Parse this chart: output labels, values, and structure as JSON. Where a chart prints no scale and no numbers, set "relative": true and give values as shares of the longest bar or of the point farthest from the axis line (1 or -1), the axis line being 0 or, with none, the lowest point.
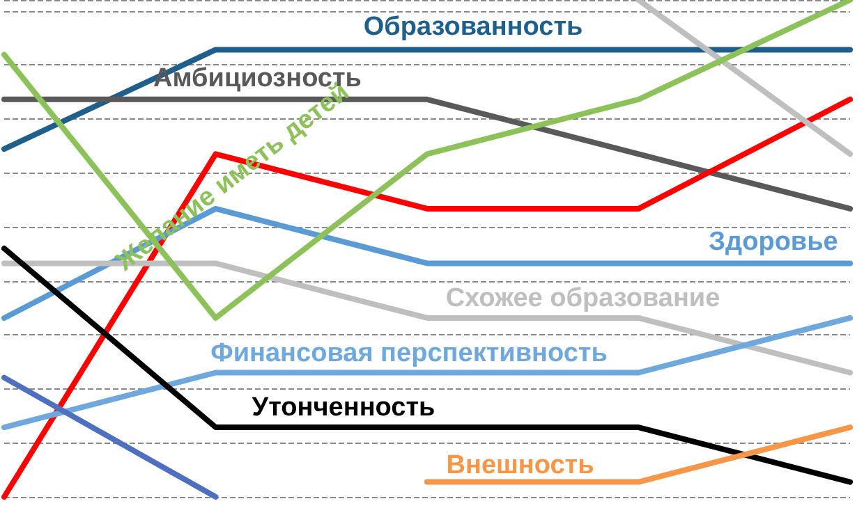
{
  "chart_data": {
    "type": "line",
    "relative": true,
    "categories": [
      null,
      null,
      null,
      null,
      null
    ],
    "grid": "y",
    "legend": false,
    "marker": "none",
    "line_style": "solid",
    "series": [
      {
        "name": "Образованность",
        "color": "#1f5f8b",
        "values": [
          0.7,
          0.9,
          0.9,
          0.9,
          0.9
        ]
      },
      {
        "name": "Амбициозность",
        "color": "#595959",
        "values": [
          0.8,
          0.8,
          0.8,
          0.69,
          0.58
        ]
      },
      {
        "color": "#ff0000",
        "values": [
          0,
          0.69,
          0.58,
          0.58,
          0.8
        ]
      },
      {
        "name": "Здоровье",
        "color": "#5b9bd5",
        "values": [
          0.36,
          0.58,
          0.47,
          0.47,
          0.47
        ]
      },
      {
        "name": "Схожее образование",
        "color": "#bfbfbf",
        "values": [
          0.47,
          0.47,
          0.36,
          0.36,
          0.25
        ]
      },
      {
        "color": "#bfbfbf",
        "values": [
          null,
          null,
          null,
          1.0,
          0.69
        ]
      },
      {
        "name": "Финансовая перспективность",
        "color": "#6fa8dc",
        "values": [
          0.14,
          0.25,
          0.25,
          0.25,
          0.36
        ]
      },
      {
        "name": "Утонченность",
        "color": "#000000",
        "values": [
          0.5,
          0.14,
          0.14,
          0.14,
          0.03
        ]
      },
      {
        "name": "Внешность",
        "color": "#f79646",
        "values": [
          null,
          null,
          0.03,
          0.03,
          0.14
        ]
      },
      {
        "color": "#4f6fc0",
        "values": [
          0.24,
          0,
          null,
          null,
          null
        ]
      },
      {
        "name": "Желание иметь детей",
        "color": "#8dc15a",
        "values": [
          0.89,
          0.36,
          0.69,
          0.8,
          1.0
        ]
      }
    ]
  }
}
